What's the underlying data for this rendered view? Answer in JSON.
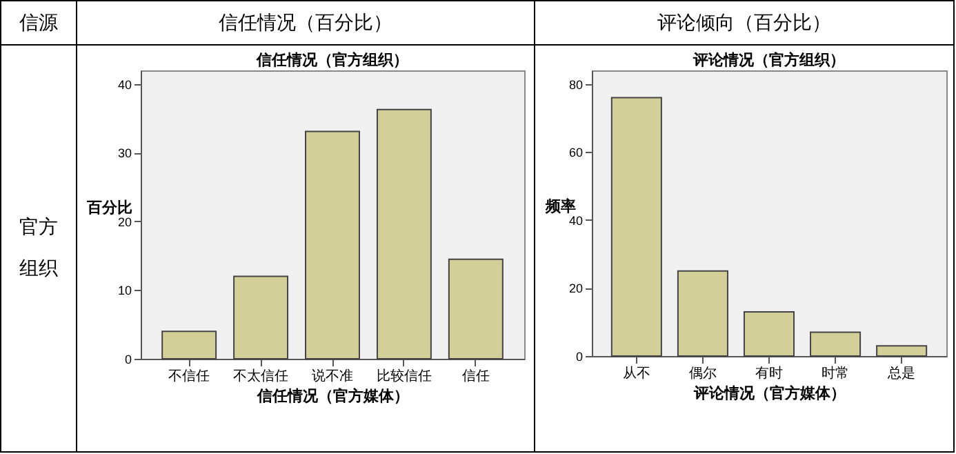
{
  "chart_data": [
    {
      "type": "bar",
      "title": "信任情况（官方组织）",
      "xlabel": "信任情况（官方媒体）",
      "ylabel": "百分比",
      "categories": [
        "不信任",
        "不太信任",
        "说不准",
        "比较信任",
        "信任"
      ],
      "values": [
        4,
        12,
        33.1,
        36.3,
        14.5
      ],
      "color": "#d3cf98",
      "ylim": [
        0,
        42
      ],
      "yticks": [
        0,
        10,
        20,
        30,
        40
      ],
      "grid": false,
      "annotations": [
        "信源",
        "信任情况（百分比）",
        "官方组织"
      ]
    },
    {
      "type": "bar",
      "title": "评论情况（官方组织）",
      "xlabel": "评论情况（官方媒体）",
      "ylabel": "频率",
      "categories": [
        "从不",
        "偶尔",
        "有时",
        "时常",
        "总是"
      ],
      "values": [
        76,
        25,
        13,
        7,
        3
      ],
      "color": "#d3cf98",
      "ylim": [
        0,
        84
      ],
      "yticks": [
        0,
        20,
        40,
        60,
        80
      ],
      "grid": false,
      "annotations": [
        "评论倾向（百分比）"
      ]
    }
  ]
}
